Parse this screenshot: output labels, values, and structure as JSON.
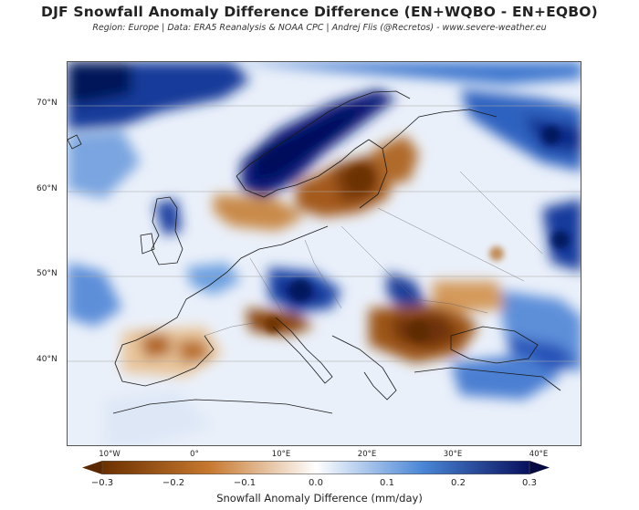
{
  "title": "DJF Snowfall Anomaly Difference Difference (EN+WQBO - EN+EQBO)",
  "subtitle": "Region: Europe | Data: ERA5 Reanalysis & NOAA CPC | Andrej Flis (@Recretos) - www.severe-weather.eu",
  "lat_labels": [
    "70°N",
    "60°N",
    "50°N",
    "40°N"
  ],
  "lon_labels": [
    "10°W",
    "0°",
    "10°E",
    "20°E",
    "30°E",
    "40°E"
  ],
  "colorbar": {
    "label": "Snowfall Anomaly Difference (mm/day)",
    "ticks": [
      "−0.3",
      "−0.2",
      "−0.1",
      "0.0",
      "0.1",
      "0.2",
      "0.3"
    ],
    "min": -0.3,
    "max": 0.3,
    "colors": {
      "neg_max": "#6b3000",
      "neg_mid": "#c7782e",
      "neutral": "#ffffff",
      "pos_mid": "#4a86d6",
      "pos_max": "#08105e"
    }
  }
}
